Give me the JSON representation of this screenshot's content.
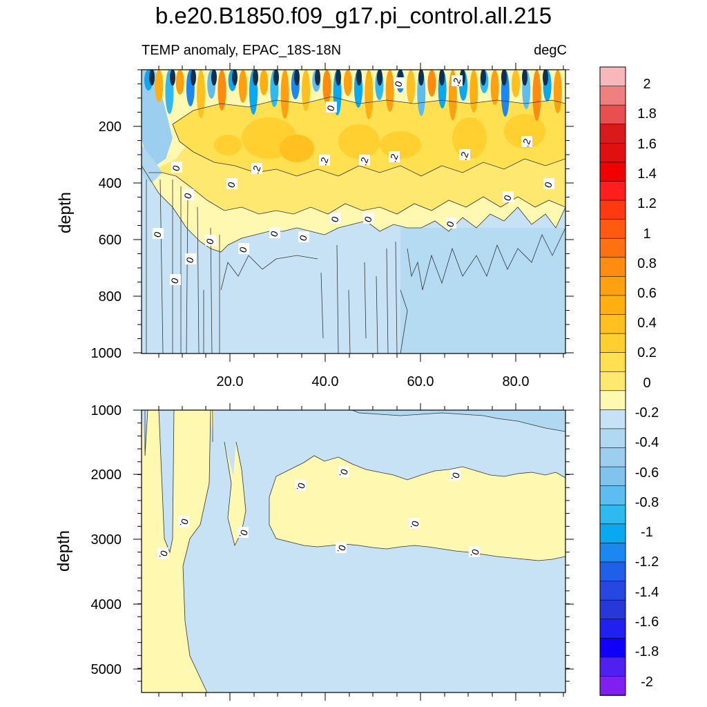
{
  "title": "b.e20.B1850.f09_g17.pi_control.all.215",
  "subtitle_left": "TEMP anomaly, EPAC_18S-18N",
  "subtitle_right": "degC",
  "chart_data": [
    {
      "type": "heatmap",
      "panel": "upper",
      "xlabel": "",
      "ylabel": "depth",
      "xlim": [
        0,
        91
      ],
      "ylim": [
        1000,
        0
      ],
      "x_ticks": [
        "20.0",
        "40.0",
        "60.0",
        "80.0"
      ],
      "y_ticks": [
        "200",
        "400",
        "600",
        "800",
        "1000"
      ],
      "contour_labels": [
        "0",
        ".2",
        "0",
        ".2",
        ".2",
        ".2",
        ".2",
        ".2",
        ".2",
        "0",
        "0",
        "0",
        "0",
        "0",
        "0",
        "0",
        "0",
        "0",
        "0",
        "0",
        "0",
        "0",
        "0",
        "0"
      ],
      "zones": [
        {
          "depth": [
            0,
            150
          ],
          "value": "alternating -0.8 to 0.6"
        },
        {
          "depth": [
            150,
            400
          ],
          "value": "0.2 to 0.4"
        },
        {
          "depth": [
            400,
            560
          ],
          "value": "0 to 0.2"
        },
        {
          "depth": [
            560,
            1000
          ],
          "value": "-0.2 to 0"
        }
      ]
    },
    {
      "type": "heatmap",
      "panel": "lower",
      "xlabel": "",
      "ylabel": "depth",
      "xlim": [
        0,
        91
      ],
      "ylim": [
        5400,
        1000
      ],
      "y_ticks": [
        "1000",
        "2000",
        "3000",
        "4000",
        "5000"
      ],
      "contour_labels": [
        "0.",
        "0.",
        "0.",
        "0.",
        "0.",
        "0.",
        "0.",
        "0.",
        "0."
      ],
      "zones": [
        {
          "depth": [
            2000,
            3300
          ],
          "x": [
            28,
            91
          ],
          "value": "0 to 0.2"
        },
        {
          "depth": [
            1000,
            5400
          ],
          "x": [
            0,
            9
          ],
          "value": "0 to 0.2"
        },
        {
          "depth": [
            1000,
            5400
          ],
          "x": [
            9,
            91
          ],
          "value": "-0.2 to 0"
        }
      ]
    }
  ],
  "colorbar": {
    "labels": [
      "2",
      "1.8",
      "1.6",
      "1.4",
      "1.2",
      "1",
      "0.8",
      "0.6",
      "0.4",
      "0.2",
      "0",
      "-0.2",
      "-0.4",
      "-0.6",
      "-0.8",
      "-1",
      "-1.2",
      "-1.4",
      "-1.6",
      "-1.8",
      "-2"
    ],
    "colors": [
      "#f8b7bb",
      "#f08080",
      "#e85050",
      "#d81a1a",
      "#e01010",
      "#f00000",
      "#ff1e1e",
      "#ff3a10",
      "#ff5a10",
      "#ff7010",
      "#ff8c10",
      "#ffa010",
      "#ffb010",
      "#ffc020",
      "#ffd030",
      "#ffe050",
      "#ffe870",
      "#fff8b0",
      "#c6e2f4",
      "#b0d8f0",
      "#9ccfef",
      "#80c4ee",
      "#5ebdf0",
      "#30b8f0",
      "#0aa8f0",
      "#1a88f0",
      "#2060e8",
      "#2648e0",
      "#2838d8",
      "#2020f0",
      "#1000f8",
      "#5020f0",
      "#8020f0"
    ]
  }
}
